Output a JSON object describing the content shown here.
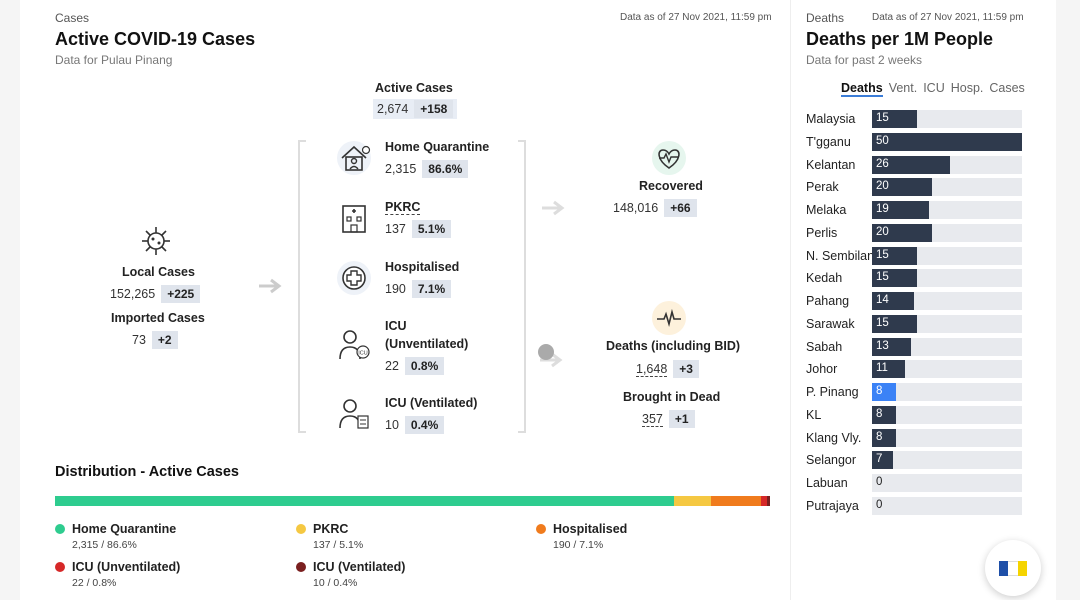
{
  "left": {
    "tag": "Cases",
    "asof": "Data as of 27 Nov 2021, 11:59 pm",
    "title": "Active COVID-19 Cases",
    "subtitle": "Data for Pulau Pinang",
    "active": {
      "label": "Active Cases",
      "value": "2,674",
      "delta": "+158"
    },
    "local": {
      "label": "Local Cases",
      "value": "152,265",
      "delta": "+225"
    },
    "imported": {
      "label": "Imported Cases",
      "value": "73",
      "delta": "+2"
    },
    "home_quarantine": {
      "label": "Home Quarantine",
      "value": "2,315",
      "pct": "86.6%"
    },
    "pkrc": {
      "label": "PKRC",
      "value": "137",
      "pct": "5.1%"
    },
    "hospitalised": {
      "label": "Hospitalised",
      "value": "190",
      "pct": "7.1%"
    },
    "icu_unvent": {
      "label1": "ICU",
      "label2": "(Unventilated)",
      "value": "22",
      "pct": "0.8%"
    },
    "icu_vent": {
      "label": "ICU (Ventilated)",
      "value": "10",
      "pct": "0.4%"
    },
    "recovered": {
      "label": "Recovered",
      "value": "148,016",
      "delta": "+66"
    },
    "deaths": {
      "label": "Deaths (including BID)",
      "value": "1,648",
      "delta": "+3"
    },
    "bid": {
      "label": "Brought in Dead",
      "value": "357",
      "delta": "+1"
    },
    "distribution": {
      "title": "Distribution - Active Cases",
      "segments": [
        {
          "name": "Home Quarantine",
          "pct": 86.6,
          "color": "#2ecc8f",
          "sub": "2,315 / 86.6%"
        },
        {
          "name": "PKRC",
          "pct": 5.1,
          "color": "#f5c842",
          "sub": "137 / 5.1%"
        },
        {
          "name": "Hospitalised",
          "pct": 7.1,
          "color": "#f07b1d",
          "sub": "190 / 7.1%"
        },
        {
          "name": "ICU (Unventilated)",
          "pct": 0.8,
          "color": "#d62828",
          "sub": "22 / 0.8%"
        },
        {
          "name": "ICU (Ventilated)",
          "pct": 0.4,
          "color": "#7a1f1f",
          "sub": "10 / 0.4%"
        }
      ]
    }
  },
  "right": {
    "tag": "Deaths",
    "asof": "Data as of 27 Nov 2021, 11:59 pm",
    "title": "Deaths per 1M People",
    "subtitle": "Data for past 2 weeks",
    "tabs": [
      "Deaths",
      "Vent.",
      "ICU",
      "Hosp.",
      "Cases"
    ],
    "active_tab": 0
  },
  "chart_data": {
    "type": "bar",
    "orientation": "horizontal",
    "max": 50,
    "highlight": "P. Pinang",
    "categories": [
      "Malaysia",
      "T'gganu",
      "Kelantan",
      "Perak",
      "Melaka",
      "Perlis",
      "N. Sembilan",
      "Kedah",
      "Pahang",
      "Sarawak",
      "Sabah",
      "Johor",
      "P. Pinang",
      "KL",
      "Klang Vly.",
      "Selangor",
      "Labuan",
      "Putrajaya"
    ],
    "values": [
      15,
      50,
      26,
      20,
      19,
      20,
      15,
      15,
      14,
      15,
      13,
      11,
      8,
      8,
      8,
      7,
      0,
      0
    ]
  },
  "colors": {
    "bar": "#2f3a4d",
    "highlight": "#3b82f6",
    "badge": "#dfe4ec"
  }
}
